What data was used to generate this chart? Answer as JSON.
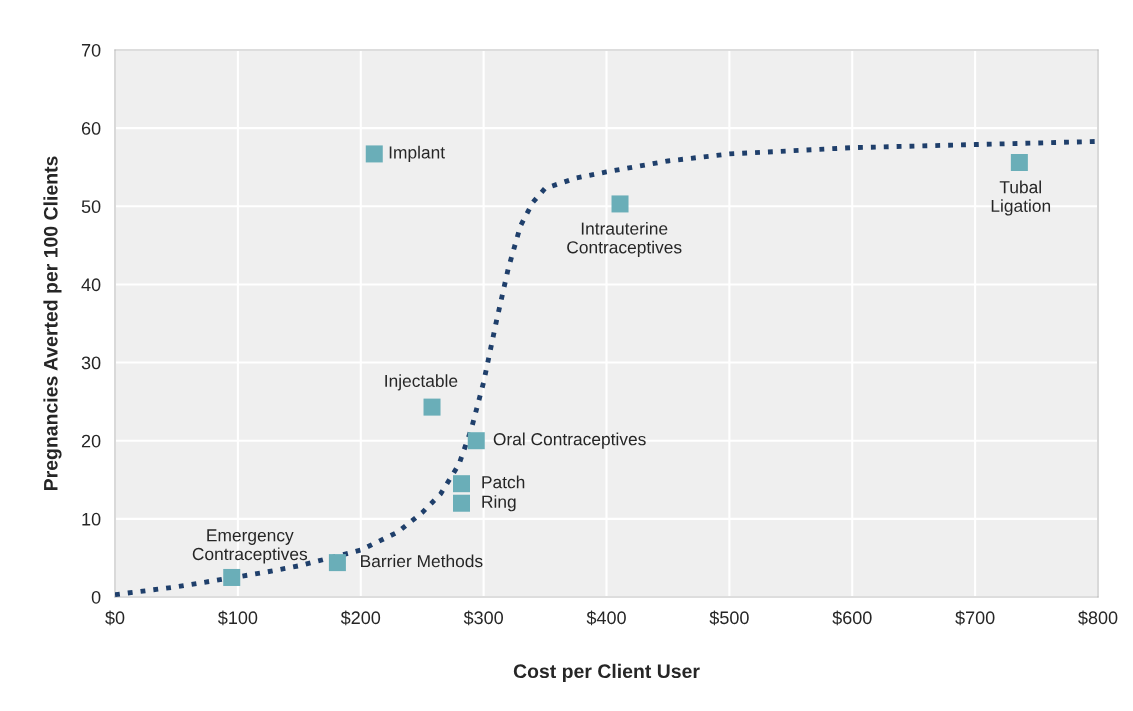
{
  "chart_data": {
    "type": "scatter",
    "xlabel": "Cost per Client User",
    "ylabel": "Pregnancies Averted per 100 Clients",
    "series": [
      {
        "type": "line",
        "color": "#1f3f6b",
        "line_style": "dotted",
        "x": [
          0,
          50,
          120,
          150,
          200,
          230,
          250,
          265,
          280,
          290,
          300,
          310,
          320,
          330,
          340,
          350,
          375,
          400,
          450,
          500,
          600,
          700,
          800
        ],
        "values": [
          0.3,
          1.3,
          3.1,
          4.0,
          6.0,
          8.3,
          10.8,
          13.2,
          17.0,
          21.5,
          27.5,
          35.0,
          42.0,
          47.5,
          50.5,
          52.3,
          53.6,
          54.4,
          55.8,
          56.7,
          57.5,
          57.9,
          58.3
        ]
      },
      {
        "color": "#6aaeb8",
        "marker": "square",
        "x": [
          95,
          181,
          211,
          258,
          294,
          282,
          282,
          411,
          736
        ],
        "values": [
          2.5,
          4.4,
          56.7,
          24.3,
          20,
          14.5,
          12,
          50.3,
          55.6
        ]
      }
    ],
    "annotations": [
      {
        "text": "Emergency\nContraceptives",
        "x": 95,
        "y": 2.5
      },
      {
        "text": "Barrier Methods",
        "x": 181,
        "y": 4.4
      },
      {
        "text": "Implant",
        "x": 211,
        "y": 56.7
      },
      {
        "text": "Injectable",
        "x": 258,
        "y": 24.3
      },
      {
        "text": "Oral Contraceptives",
        "x": 294,
        "y": 20
      },
      {
        "text": "Patch",
        "x": 282,
        "y": 14.5
      },
      {
        "text": "Ring",
        "x": 282,
        "y": 12
      },
      {
        "text": "Intrauterine\nContraceptives",
        "x": 411,
        "y": 50.3
      },
      {
        "text": "Tubal\nLigation",
        "x": 736,
        "y": 55.6
      }
    ],
    "xlim": [
      0,
      800
    ],
    "ylim": [
      0,
      70
    ],
    "xticks": [
      {
        "value": 0,
        "label": "$0"
      },
      {
        "value": 100,
        "label": "$100"
      },
      {
        "value": 200,
        "label": "$200"
      },
      {
        "value": 300,
        "label": "$300"
      },
      {
        "value": 400,
        "label": "$400"
      },
      {
        "value": 500,
        "label": "$500"
      },
      {
        "value": 600,
        "label": "$600"
      },
      {
        "value": 700,
        "label": "$700"
      },
      {
        "value": 800,
        "label": "$800"
      }
    ],
    "yticks": [
      0,
      10,
      20,
      30,
      40,
      50,
      60,
      70
    ],
    "grid": true
  }
}
